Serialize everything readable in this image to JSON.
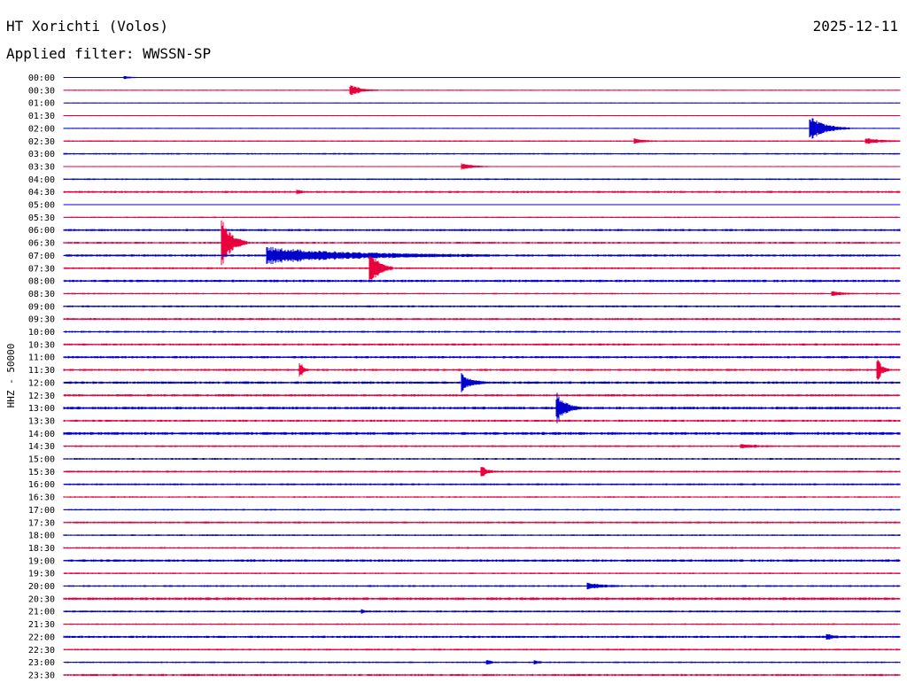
{
  "header": {
    "station": "HT Xorichti (Volos)",
    "date": "2025-12-11",
    "filter": "Applied filter: WWSSN-SP"
  },
  "chart_data": {
    "type": "line",
    "chart_kind": "helicorder",
    "ylabel": "HHZ - 50000",
    "colors": {
      "even": "#0000cc",
      "odd": "#e8003d"
    },
    "row_labels": [
      "00:00",
      "00:30",
      "01:00",
      "01:30",
      "02:00",
      "02:30",
      "03:00",
      "03:30",
      "04:00",
      "04:30",
      "05:00",
      "05:30",
      "06:00",
      "06:30",
      "07:00",
      "07:30",
      "08:00",
      "08:30",
      "09:00",
      "09:30",
      "10:00",
      "10:30",
      "11:00",
      "11:30",
      "12:00",
      "12:30",
      "13:00",
      "13:30",
      "14:00",
      "14:30",
      "15:00",
      "15:30",
      "16:00",
      "16:30",
      "17:00",
      "17:30",
      "18:00",
      "18:30",
      "19:00",
      "19:30",
      "20:00",
      "20:30",
      "21:00",
      "21:30",
      "22:00",
      "22:30",
      "23:00",
      "23:30"
    ],
    "minutes_per_row": 30,
    "noise": [
      0.5,
      0.6,
      0.5,
      0.6,
      0.6,
      0.8,
      0.9,
      0.6,
      0.9,
      1.2,
      0.5,
      0.8,
      1.2,
      1.1,
      1.3,
      1.1,
      1.4,
      0.9,
      1.1,
      1.2,
      1.1,
      1.2,
      1.3,
      1.2,
      1.4,
      1.3,
      1.5,
      1.2,
      1.6,
      1.0,
      1.0,
      1.1,
      1.1,
      0.9,
      0.9,
      1.1,
      0.9,
      1.0,
      1.4,
      0.9,
      1.0,
      1.5,
      1.1,
      0.9,
      1.3,
      1.0,
      0.9,
      1.2
    ],
    "events": [
      {
        "row": 0,
        "minute": 2.2,
        "amp": 1.5,
        "dur": 0.6
      },
      {
        "row": 1,
        "minute": 10.3,
        "amp": 6,
        "dur": 1.0
      },
      {
        "row": 4,
        "minute": 26.8,
        "amp": 14,
        "dur": 1.4
      },
      {
        "row": 5,
        "minute": 20.5,
        "amp": 3,
        "dur": 0.8
      },
      {
        "row": 5,
        "minute": 28.8,
        "amp": 3,
        "dur": 1.4
      },
      {
        "row": 7,
        "minute": 14.3,
        "amp": 3.5,
        "dur": 1.0
      },
      {
        "row": 9,
        "minute": 8.4,
        "amp": 2,
        "dur": 0.3
      },
      {
        "row": 13,
        "minute": 5.7,
        "amp": 28,
        "dur": 0.9
      },
      {
        "row": 14,
        "minute": 7.3,
        "amp": 9,
        "dur": 8.0
      },
      {
        "row": 15,
        "minute": 11.0,
        "amp": 22,
        "dur": 0.8
      },
      {
        "row": 17,
        "minute": 27.6,
        "amp": 3,
        "dur": 0.8
      },
      {
        "row": 23,
        "minute": 8.5,
        "amp": 9,
        "dur": 0.3
      },
      {
        "row": 23,
        "minute": 29.2,
        "amp": 14,
        "dur": 0.4
      },
      {
        "row": 24,
        "minute": 14.3,
        "amp": 11,
        "dur": 0.8
      },
      {
        "row": 26,
        "minute": 17.7,
        "amp": 17,
        "dur": 0.8
      },
      {
        "row": 29,
        "minute": 24.3,
        "amp": 2,
        "dur": 1.4
      },
      {
        "row": 31,
        "minute": 15.0,
        "amp": 6,
        "dur": 0.5
      },
      {
        "row": 40,
        "minute": 18.8,
        "amp": 3.5,
        "dur": 1.2
      },
      {
        "row": 42,
        "minute": 10.7,
        "amp": 2,
        "dur": 0.3
      },
      {
        "row": 44,
        "minute": 27.4,
        "amp": 4,
        "dur": 0.4
      },
      {
        "row": 46,
        "minute": 15.2,
        "amp": 2.5,
        "dur": 0.4
      },
      {
        "row": 46,
        "minute": 16.9,
        "amp": 2,
        "dur": 0.4
      }
    ]
  }
}
